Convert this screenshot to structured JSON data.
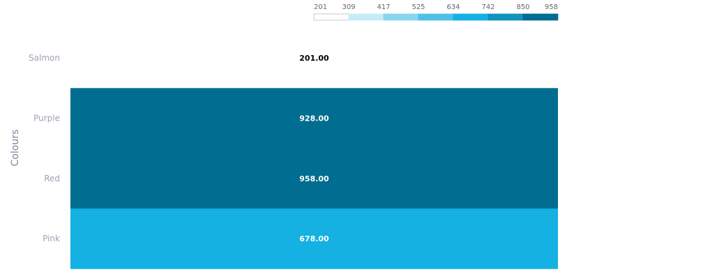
{
  "chart_data": {
    "type": "heatmap",
    "title": "",
    "xlabel": "",
    "ylabel": "Colours",
    "categories": [
      "Salmon",
      "Purple",
      "Red",
      "Pink"
    ],
    "values": [
      201.0,
      928.0,
      958.0,
      678.0
    ],
    "value_labels": [
      "201.00",
      "928.00",
      "958.00",
      "678.00"
    ],
    "value_range": [
      201,
      958
    ],
    "grid": false,
    "legend": {
      "placement": "top",
      "ticks": [
        "201",
        "309",
        "417",
        "525",
        "634",
        "742",
        "850",
        "958"
      ],
      "bins": [
        {
          "from": 201,
          "to": 309,
          "color": "#ffffff"
        },
        {
          "from": 309,
          "to": 417,
          "color": "#c5ecf7"
        },
        {
          "from": 417,
          "to": 525,
          "color": "#8ad5ee"
        },
        {
          "from": 525,
          "to": 634,
          "color": "#4ec1e6"
        },
        {
          "from": 634,
          "to": 742,
          "color": "#14b1e2"
        },
        {
          "from": 742,
          "to": 850,
          "color": "#0f94bd"
        },
        {
          "from": 850,
          "to": 958,
          "color": "#006d91"
        }
      ]
    },
    "colors": {
      "light_text": "#000000",
      "dark_text": "#ffffff"
    }
  }
}
